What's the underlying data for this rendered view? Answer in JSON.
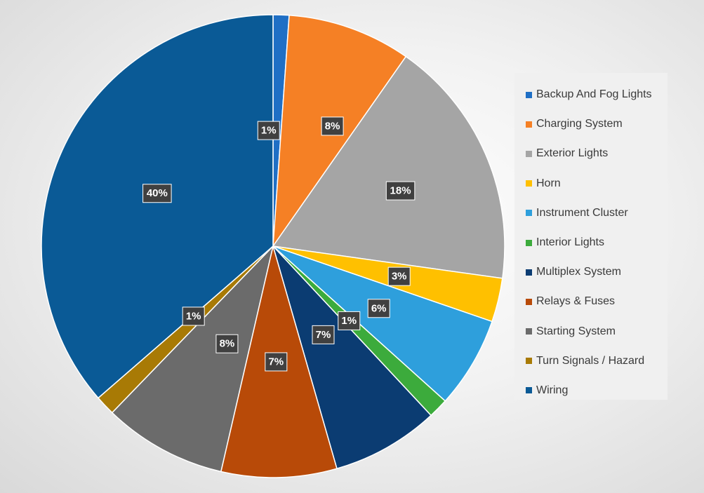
{
  "chart_data": {
    "type": "pie",
    "series": [
      {
        "name": "Backup And Fog Lights",
        "value": 1,
        "label": "1%",
        "color": "#1f6fc5"
      },
      {
        "name": "Charging System",
        "value": 8,
        "label": "8%",
        "color": "#f58025"
      },
      {
        "name": "Exterior Lights",
        "value": 18,
        "label": "18%",
        "color": "#a5a5a5"
      },
      {
        "name": "Horn",
        "value": 3,
        "label": "3%",
        "color": "#ffc000"
      },
      {
        "name": "Instrument Cluster",
        "value": 6,
        "label": "6%",
        "color": "#2e9fdc"
      },
      {
        "name": "Interior Lights",
        "value": 1,
        "label": "1%",
        "color": "#3cab3c"
      },
      {
        "name": "Multiplex System",
        "value": 7,
        "label": "7%",
        "color": "#0b3c72"
      },
      {
        "name": "Relays & Fuses",
        "value": 7,
        "label": "7%",
        "color": "#b84a08"
      },
      {
        "name": "Starting System",
        "value": 8,
        "label": "8%",
        "color": "#6b6b6b"
      },
      {
        "name": "Turn Signals / Hazard",
        "value": 1,
        "label": "1%",
        "color": "#a87a05"
      },
      {
        "name": "Wiring",
        "value": 40,
        "label": "40%",
        "color": "#0a5a96"
      }
    ],
    "start_angle_deg": 0,
    "direction": "clockwise",
    "legend_position": "right"
  }
}
